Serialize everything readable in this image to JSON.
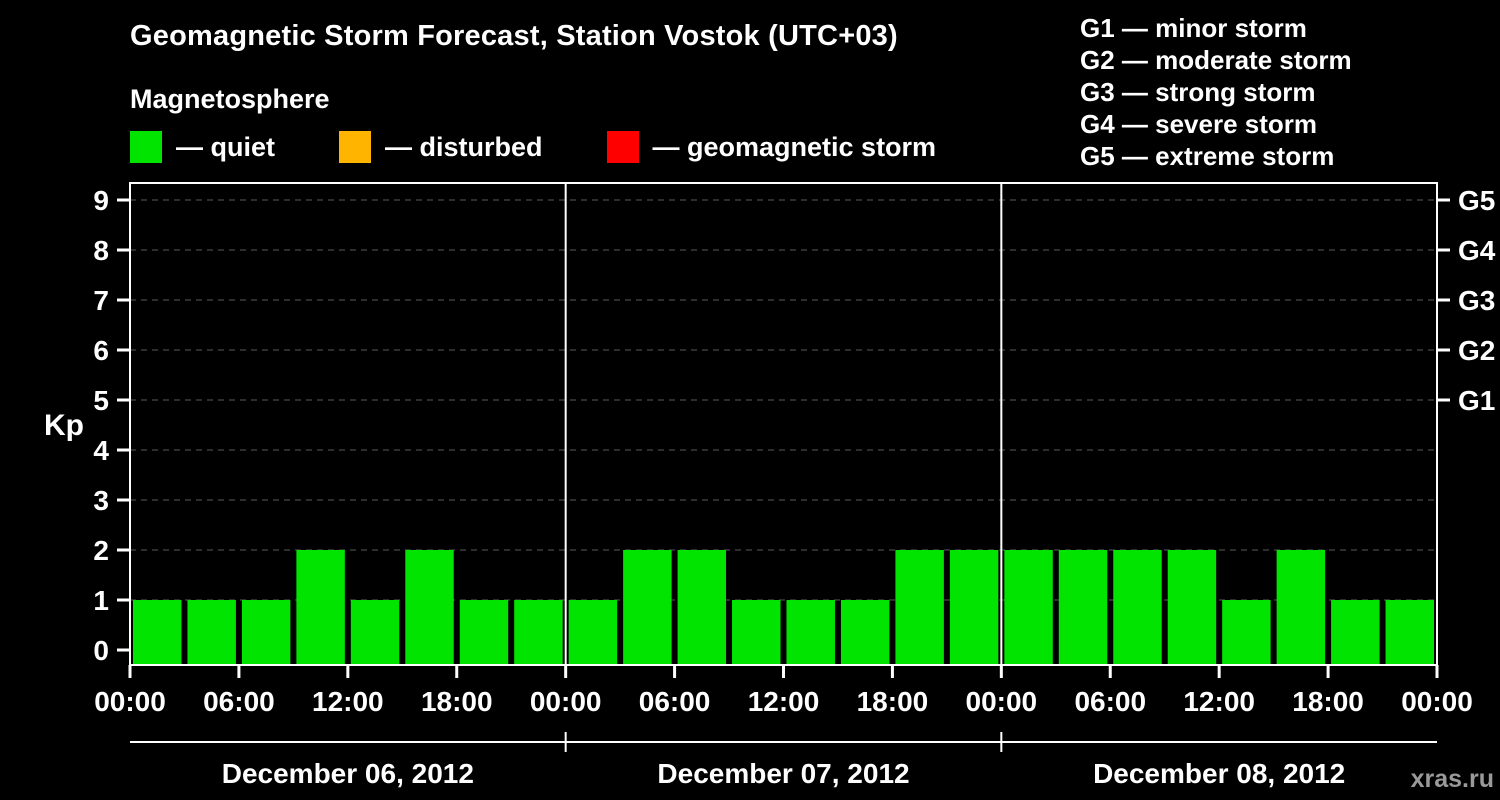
{
  "header": {
    "title": "Geomagnetic Storm Forecast, Station Vostok (UTC+03)",
    "subtitle": "Magnetosphere"
  },
  "activity_legend": [
    {
      "name": "quiet",
      "label": "— quiet",
      "color": "#00e400"
    },
    {
      "name": "disturbed",
      "label": "— disturbed",
      "color": "#ffb400"
    },
    {
      "name": "storm",
      "label": "— geomagnetic storm",
      "color": "#ff0000"
    }
  ],
  "storm_scale_legend": [
    {
      "text": "G1 — minor storm"
    },
    {
      "text": "G2 — moderate storm"
    },
    {
      "text": "G3 — strong storm"
    },
    {
      "text": "G4 — severe storm"
    },
    {
      "text": "G5 — extreme storm"
    }
  ],
  "watermark": "xras.ru",
  "chart_data": {
    "type": "bar",
    "title": "Geomagnetic Storm Forecast, Station Vostok (UTC+03)",
    "ylabel": "Kp",
    "ylim": [
      0,
      9
    ],
    "y_ticks": [
      0,
      1,
      2,
      3,
      4,
      5,
      6,
      7,
      8,
      9
    ],
    "right_axis": [
      {
        "label": "G1",
        "kp": 5
      },
      {
        "label": "G2",
        "kp": 6
      },
      {
        "label": "G3",
        "kp": 7
      },
      {
        "label": "G4",
        "kp": 8
      },
      {
        "label": "G5",
        "kp": 9
      }
    ],
    "x_tick_labels": [
      "00:00",
      "06:00",
      "12:00",
      "18:00",
      "00:00",
      "06:00",
      "12:00",
      "18:00",
      "00:00",
      "06:00",
      "12:00",
      "18:00",
      "00:00"
    ],
    "interval_hours": 3,
    "days": [
      {
        "date": "December 06, 2012",
        "values": [
          1,
          1,
          1,
          2,
          1,
          2,
          1,
          1
        ]
      },
      {
        "date": "December 07, 2012",
        "values": [
          1,
          2,
          2,
          1,
          1,
          1,
          2,
          2
        ]
      },
      {
        "date": "December 08, 2012",
        "values": [
          2,
          2,
          2,
          2,
          1,
          2,
          1,
          1
        ]
      }
    ],
    "colors": {
      "quiet": "#00e400",
      "disturbed": "#ffb400",
      "storm": "#ff0000",
      "grid": "#5a5a5a",
      "axis": "#ffffff"
    },
    "grid": true,
    "legend_position": "top-left"
  }
}
